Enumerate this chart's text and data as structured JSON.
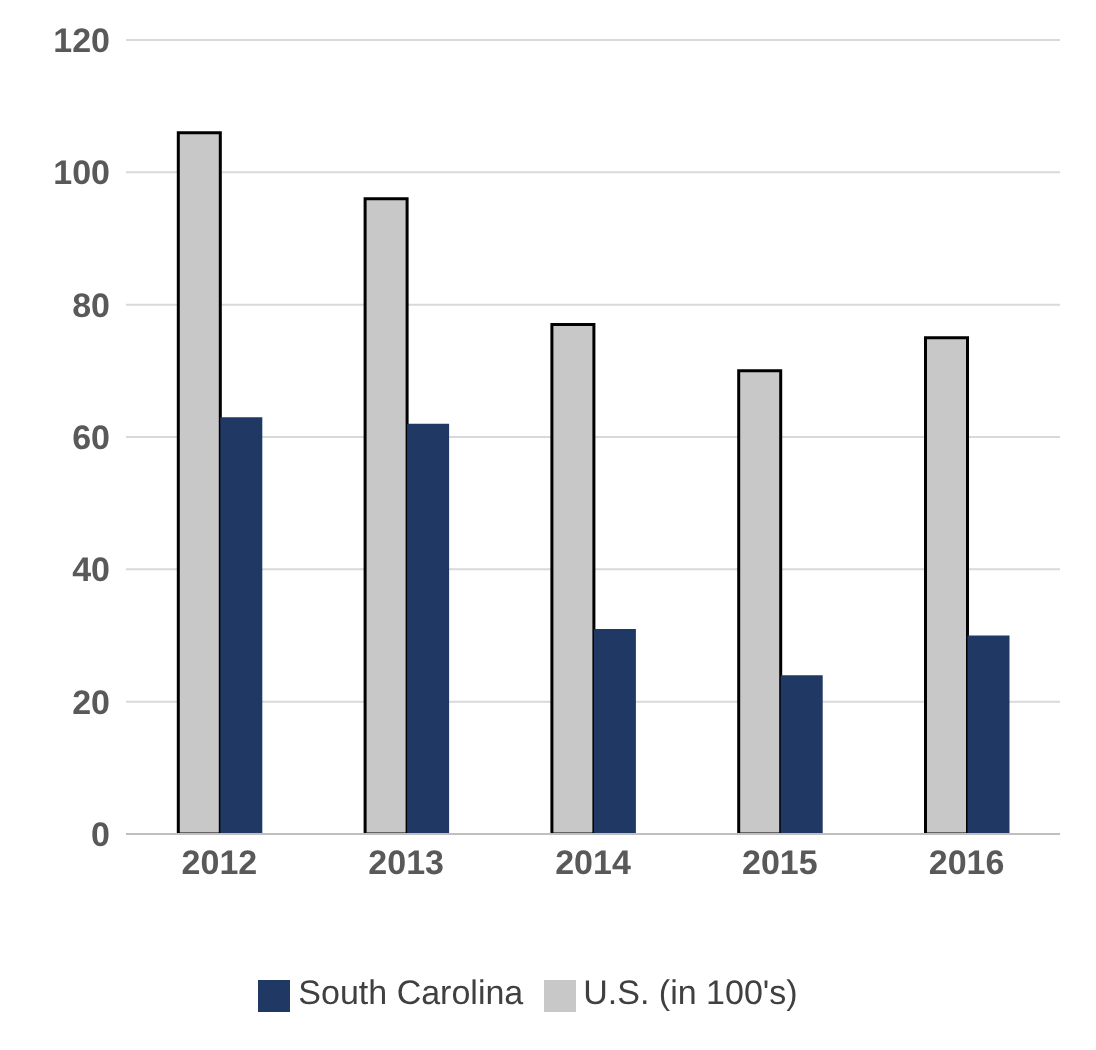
{
  "chart_data": {
    "type": "bar",
    "categories": [
      "2012",
      "2013",
      "2014",
      "2015",
      "2016"
    ],
    "series": [
      {
        "name": "U.S. (in 100's)",
        "color": "#c8c8c8",
        "values": [
          106,
          96,
          77,
          70,
          75
        ]
      },
      {
        "name": "South Carolina",
        "color": "#203864",
        "values": [
          63,
          62,
          31,
          24,
          30
        ]
      }
    ],
    "ylim": [
      0,
      120
    ],
    "yticks": [
      0,
      20,
      40,
      60,
      80,
      100,
      120
    ],
    "grid": "y",
    "legend": "bottom"
  }
}
